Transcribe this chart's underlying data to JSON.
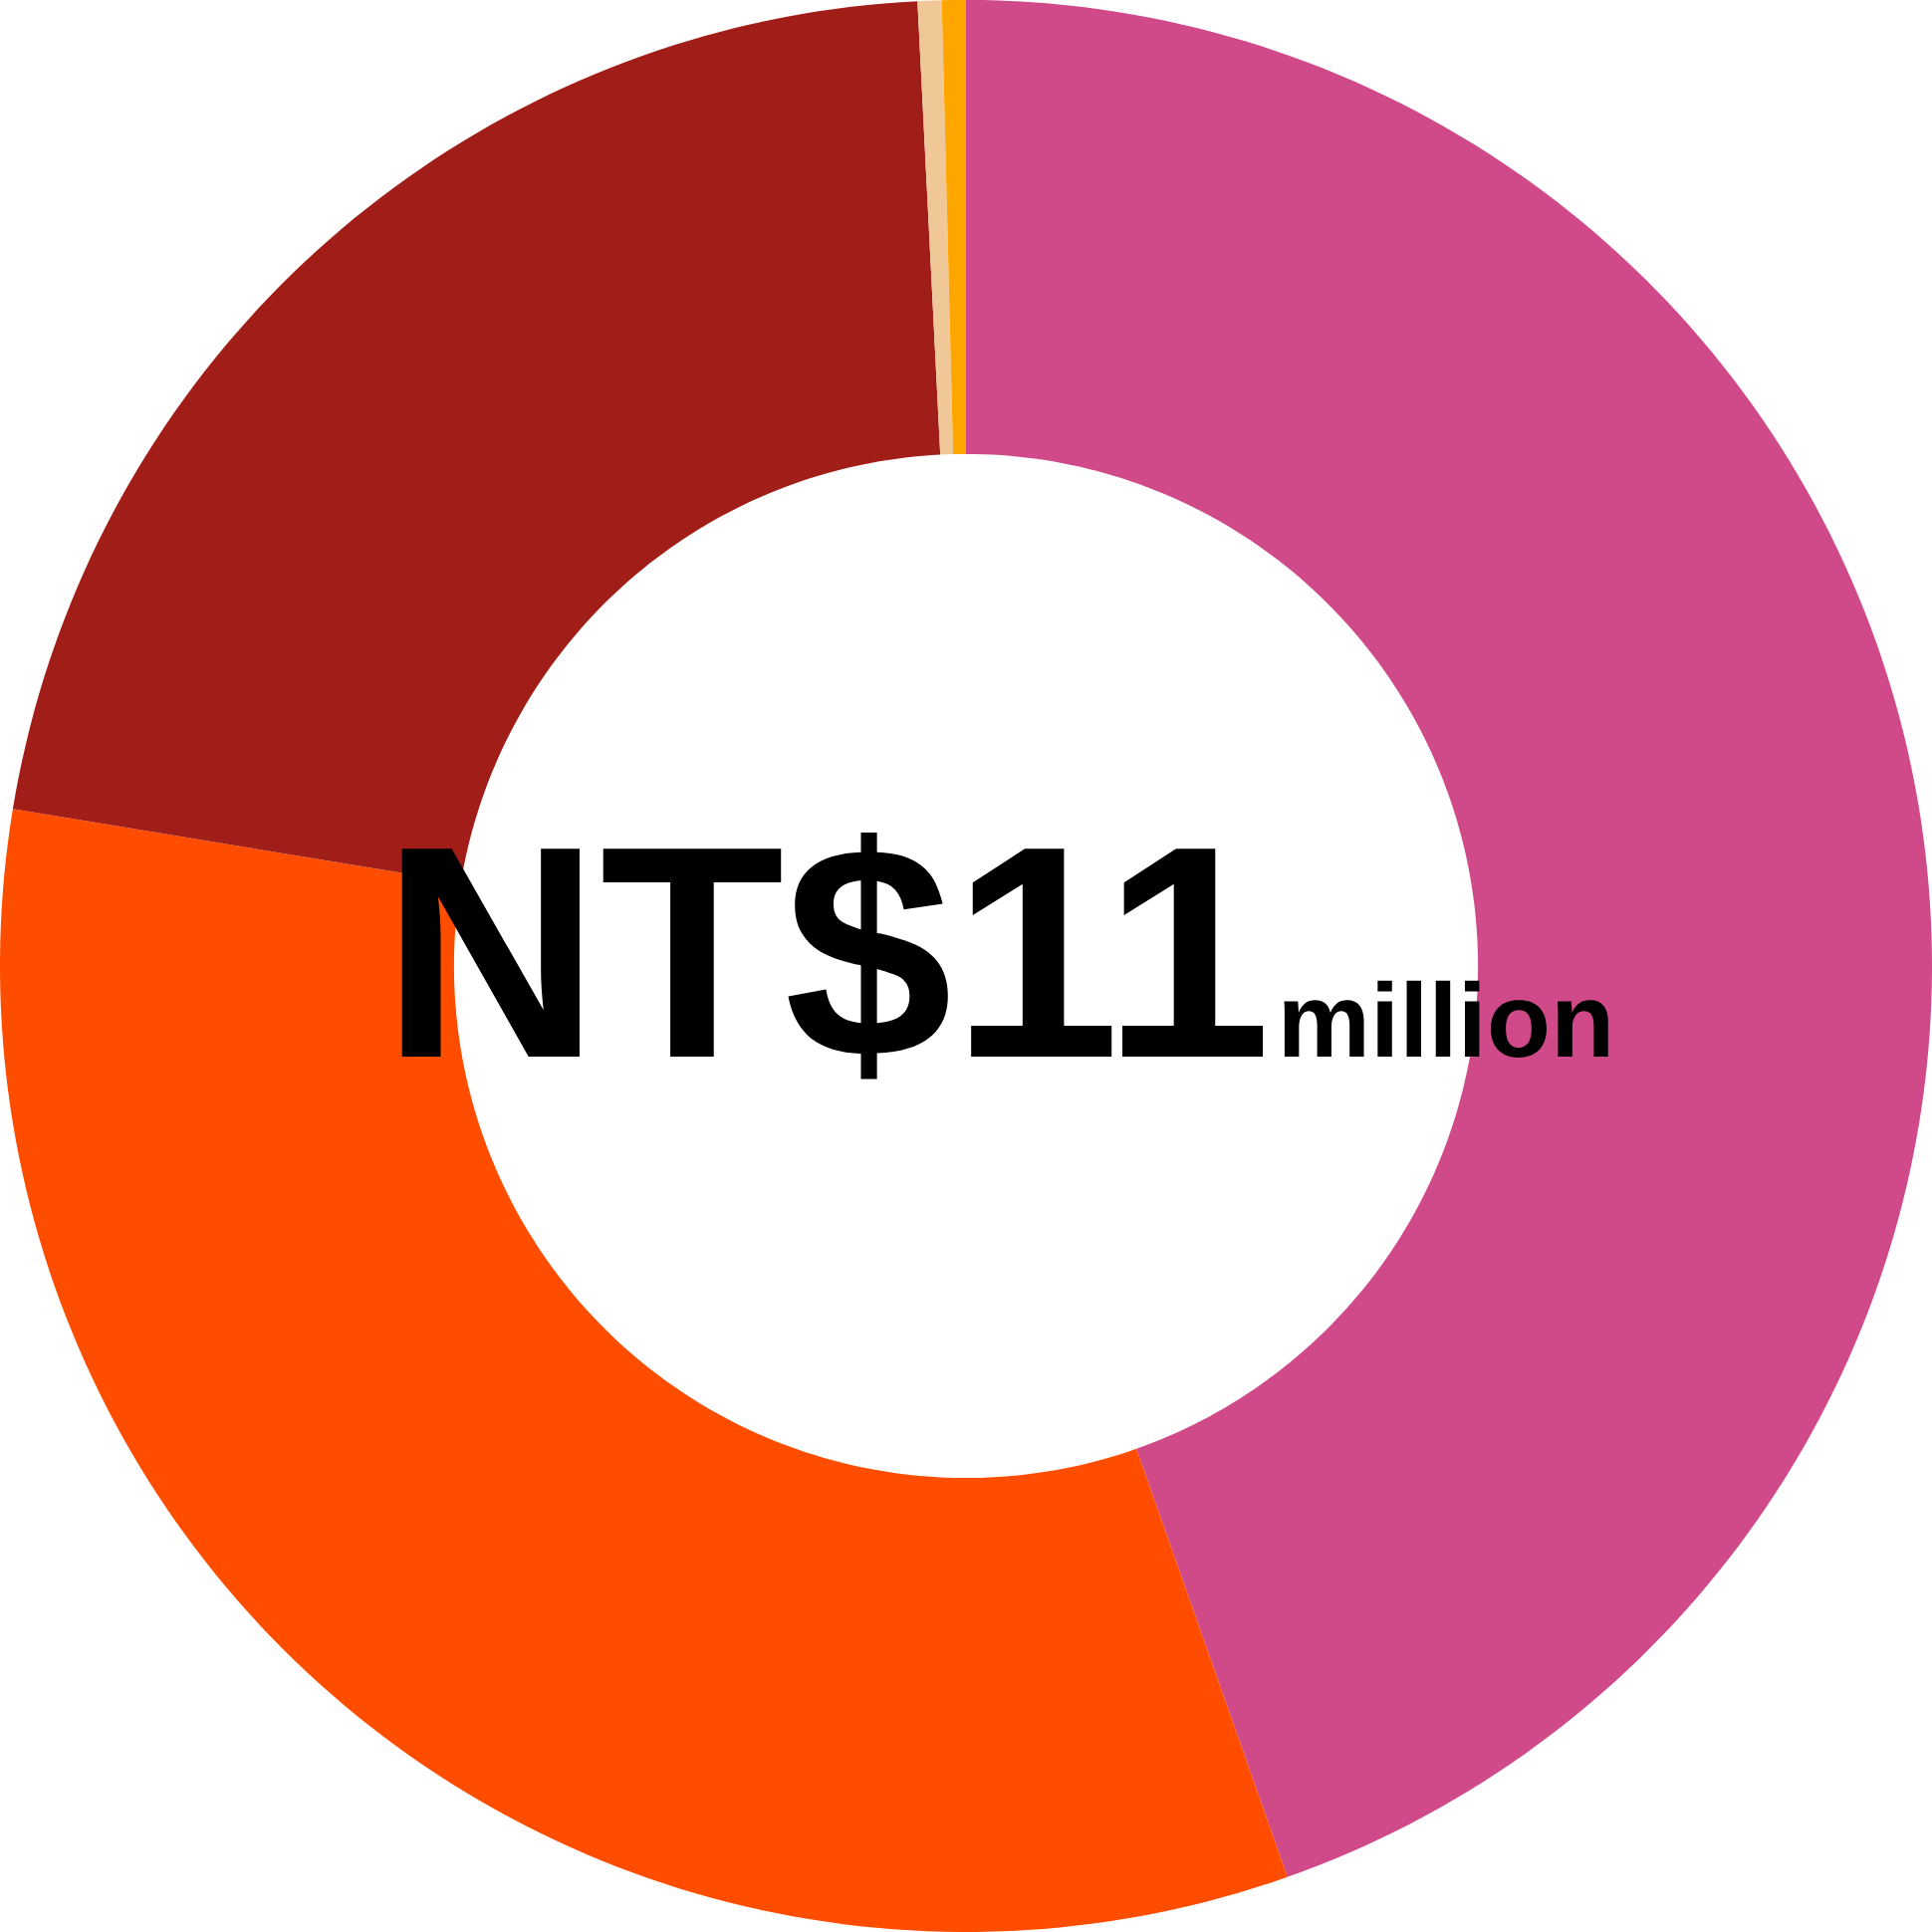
{
  "chart_data": {
    "type": "donut",
    "categories": [
      null,
      null,
      null,
      null,
      null
    ],
    "values": [
      44.6,
      33.0,
      21.6,
      0.4,
      0.4
    ],
    "colors": [
      "#d04a8a",
      "#ff4d00",
      "#a11d18",
      "#f0c898",
      "#ffa500"
    ],
    "annotations": [
      "NT$11",
      "million"
    ]
  }
}
